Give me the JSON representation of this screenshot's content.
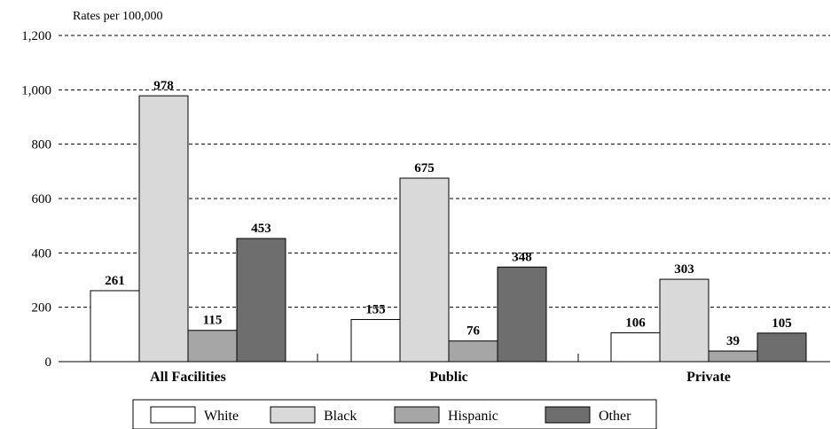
{
  "chart_data": {
    "type": "bar",
    "ylabel": "Rates per 100,000",
    "ylim": [
      0,
      1200
    ],
    "yticks": [
      {
        "value": 0,
        "label": "0"
      },
      {
        "value": 200,
        "label": "200"
      },
      {
        "value": 400,
        "label": "400"
      },
      {
        "value": 600,
        "label": "600"
      },
      {
        "value": 800,
        "label": "800"
      },
      {
        "value": 1000,
        "label": "1,000"
      },
      {
        "value": 1200,
        "label": "1,200"
      }
    ],
    "grid": "dashed horizontal",
    "legend_position": "bottom",
    "categories": [
      "All Facilities",
      "Public",
      "Private"
    ],
    "series": [
      {
        "name": "White",
        "color": "#ffffff",
        "values": [
          261,
          155,
          106
        ]
      },
      {
        "name": "Black",
        "color": "#d9d9d9",
        "values": [
          978,
          675,
          303
        ]
      },
      {
        "name": "Hispanic",
        "color": "#a6a6a6",
        "values": [
          115,
          76,
          39
        ]
      },
      {
        "name": "Other",
        "color": "#6e6e6e",
        "values": [
          453,
          348,
          105
        ]
      }
    ]
  }
}
